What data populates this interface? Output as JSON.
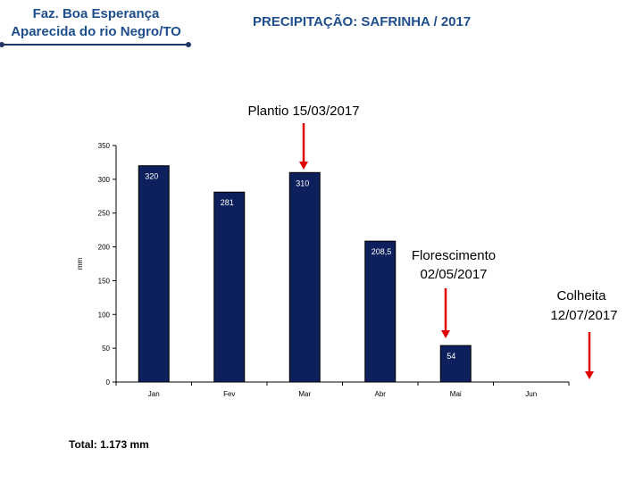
{
  "header": {
    "farm_line1": "Faz. Boa Esperança",
    "farm_line2": "Aparecida do rio Negro/TO",
    "chart_title": "PRECIPITAÇÃO: SAFRINHA / 2017"
  },
  "chart_data": {
    "type": "bar",
    "categories": [
      "Jan",
      "Fev",
      "Mar",
      "Abr",
      "Mai",
      "Jun"
    ],
    "values": [
      320,
      281,
      310,
      208.5,
      54,
      null
    ],
    "value_labels": [
      "320",
      "281",
      "310",
      "208,5",
      "54",
      ""
    ],
    "ylabel": "mm",
    "xlabel": "",
    "ylim": [
      0,
      350
    ],
    "yticks": [
      0,
      50,
      100,
      150,
      200,
      250,
      300,
      350
    ],
    "grid": false,
    "legend": "none",
    "colors": {
      "bar": "#0d1f5c",
      "bar_edge": "#000000",
      "bar_label": "#ffffff",
      "arrow": "#e00000"
    },
    "annotations": [
      {
        "id": "plantio",
        "lines": [
          "Plantio 15/03/2017"
        ]
      },
      {
        "id": "florescimento",
        "lines": [
          "Florescimento",
          "02/05/2017"
        ]
      },
      {
        "id": "colheita",
        "lines": [
          "Colheita",
          "12/07/2017"
        ]
      }
    ]
  },
  "footer": {
    "total": "Total: 1.173 mm"
  }
}
